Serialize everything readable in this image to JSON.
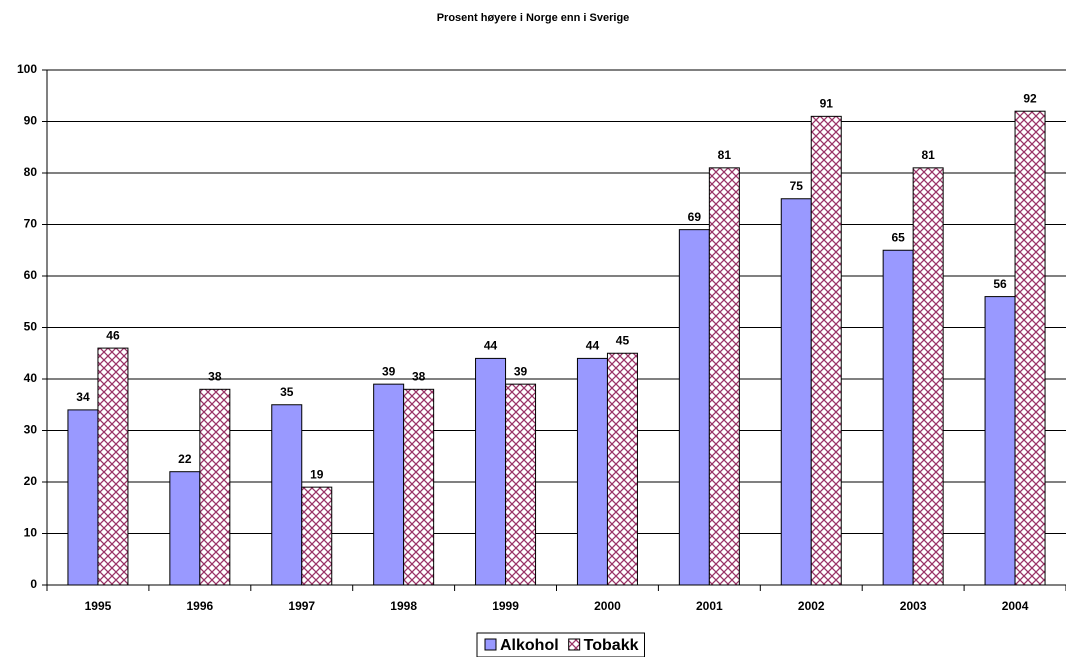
{
  "chart_data": {
    "type": "bar",
    "title": "Prosent høyere i Norge enn i Sverige",
    "categories": [
      "1995",
      "1996",
      "1997",
      "1998",
      "1999",
      "2000",
      "2001",
      "2002",
      "2003",
      "2004"
    ],
    "series": [
      {
        "name": "Alkohol",
        "color": "#9999ff",
        "pattern": "solid",
        "values": [
          34,
          22,
          35,
          39,
          44,
          44,
          69,
          75,
          65,
          56
        ]
      },
      {
        "name": "Tobakk",
        "color": "#993366",
        "pattern": "crosshatch",
        "values": [
          46,
          38,
          19,
          38,
          39,
          45,
          81,
          91,
          81,
          92
        ]
      }
    ],
    "ylim": [
      0,
      100
    ],
    "yticks": [
      0,
      10,
      20,
      30,
      40,
      50,
      60,
      70,
      80,
      90,
      100
    ],
    "grid": true,
    "legend": "bottom"
  }
}
